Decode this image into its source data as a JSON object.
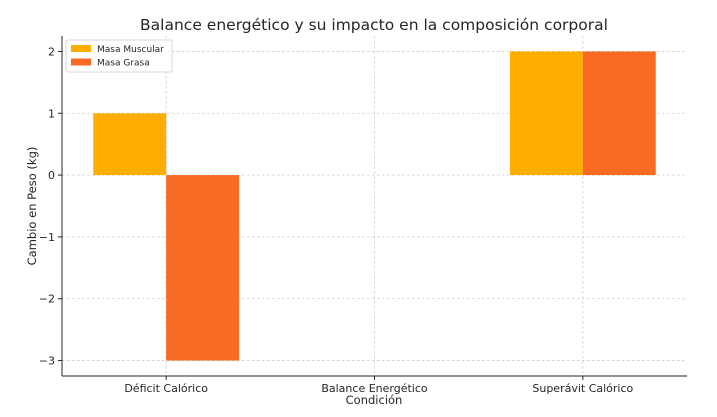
{
  "chart_data": {
    "type": "bar",
    "title": "Balance energético y su impacto en la composición corporal",
    "xlabel": "Condición",
    "ylabel": "Cambio en Peso (kg)",
    "categories": [
      "Déficit Calórico",
      "Balance Energético",
      "Superávit Calórico"
    ],
    "series": [
      {
        "name": "Masa Muscular",
        "color": "#FFAE00",
        "values": [
          1,
          0,
          2
        ]
      },
      {
        "name": "Masa Grasa",
        "color": "#F76B22",
        "values": [
          -3,
          0,
          2
        ]
      }
    ],
    "ylim": [
      -3.25,
      2.25
    ],
    "yticks": [
      -3,
      -2,
      -1,
      0,
      1,
      2
    ],
    "ytick_labels": [
      "−3",
      "−2",
      "−1",
      "0",
      "1",
      "2"
    ],
    "grid": true,
    "legend": "top-left"
  }
}
